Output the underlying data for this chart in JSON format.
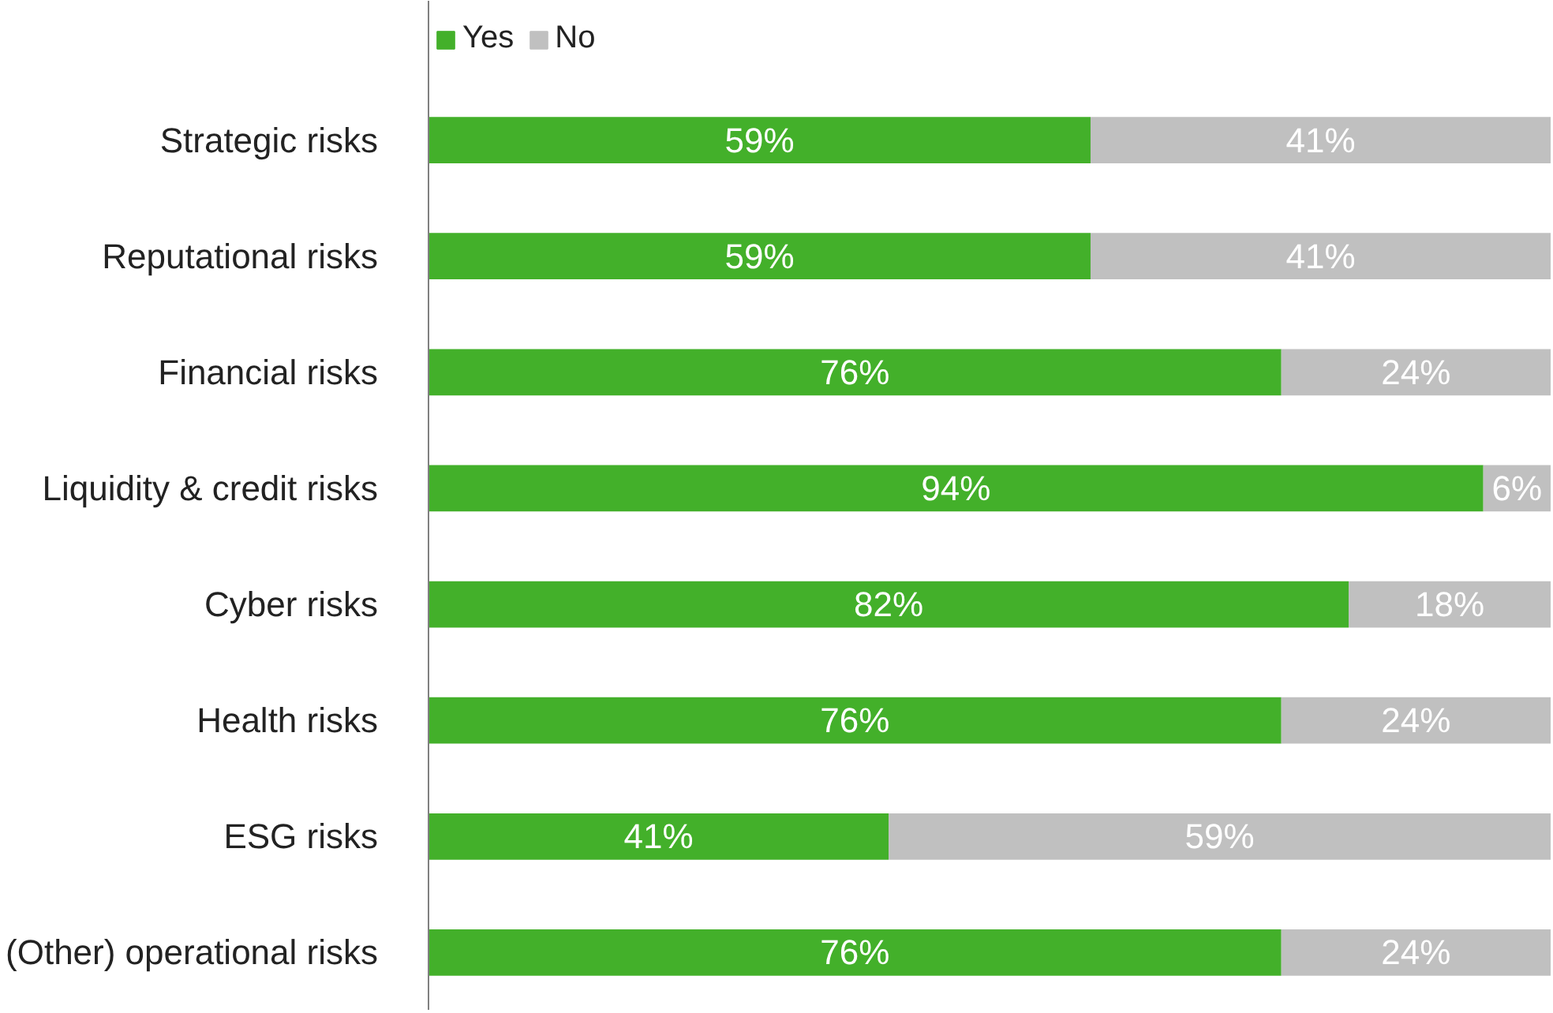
{
  "chart_data": {
    "type": "bar",
    "orientation": "horizontal",
    "stacked": true,
    "legend": "top left",
    "grid": false,
    "categories": [
      "Strategic risks",
      "Reputational risks",
      "Financial risks",
      "Liquidity & credit risks",
      "Cyber risks",
      "Health risks",
      "ESG risks",
      "(Other) operational risks"
    ],
    "series": [
      {
        "name": "Yes",
        "color": "#43b02a",
        "values": [
          59,
          59,
          76,
          94,
          82,
          76,
          41,
          76
        ],
        "value_labels": [
          "59%",
          "59%",
          "76%",
          "94%",
          "82%",
          "76%",
          "41%",
          "76%"
        ]
      },
      {
        "name": "No",
        "color": "#c0c0c0",
        "values": [
          41,
          41,
          24,
          6,
          18,
          24,
          59,
          24
        ],
        "value_labels": [
          "41%",
          "41%",
          "24%",
          "6%",
          "18%",
          "24%",
          "59%",
          "24%"
        ]
      }
    ]
  }
}
